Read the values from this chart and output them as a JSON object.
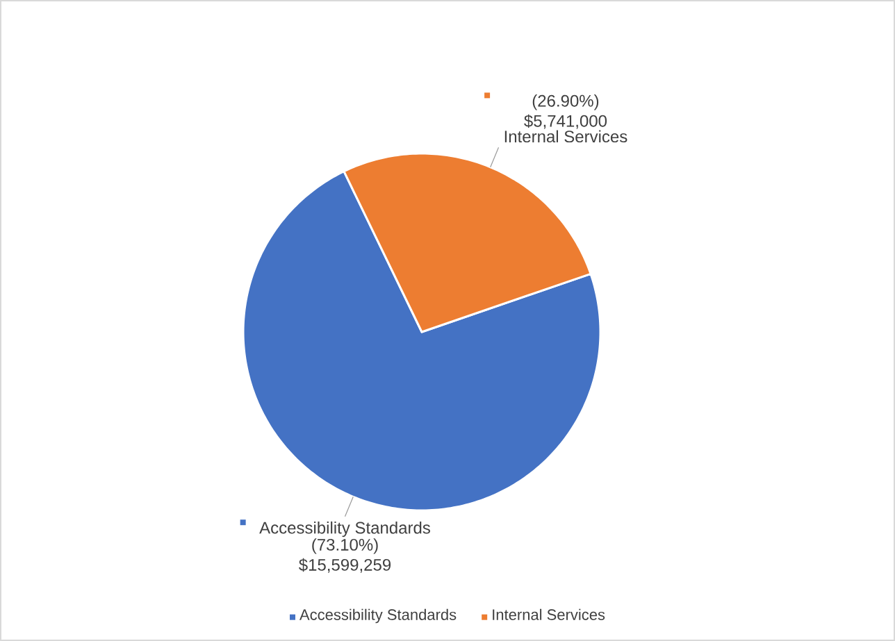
{
  "chart_data": {
    "type": "pie",
    "categories": [
      "Accessibility Standards",
      "Internal Services"
    ],
    "values": [
      15599259,
      5741000
    ],
    "colors": [
      "#4472c4",
      "#ed7d31"
    ],
    "value_labels": [
      "(73.10%) $15,599,259",
      "(26.90%) $5,741,000"
    ],
    "legend": "bottom"
  }
}
